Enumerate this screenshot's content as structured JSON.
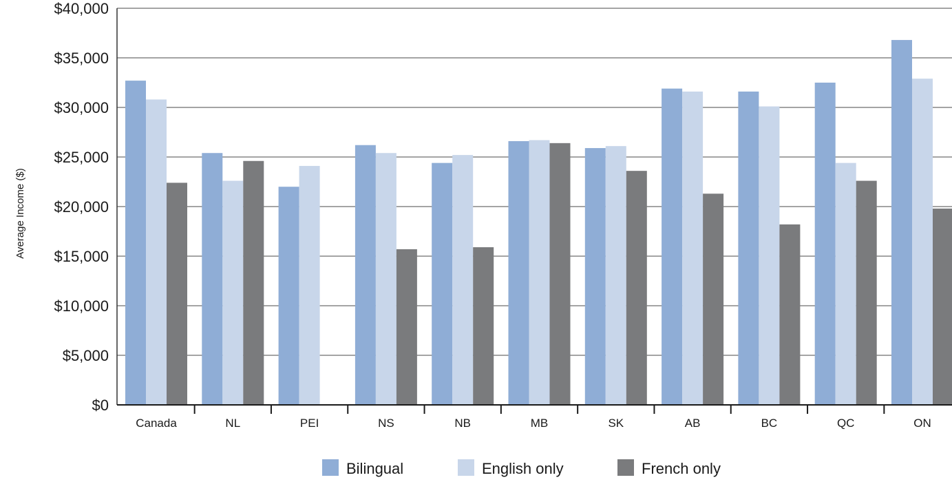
{
  "chart_data": {
    "type": "bar",
    "title": "",
    "xlabel": "",
    "ylabel": "Average Income ($)",
    "ylim": [
      0,
      40000
    ],
    "y_ticks": [
      0,
      5000,
      10000,
      15000,
      20000,
      25000,
      30000,
      35000,
      40000
    ],
    "y_tick_labels": [
      "$0",
      "$5,000",
      "$10,000",
      "$15,000",
      "$20,000",
      "$25,000",
      "$30,000",
      "$35,000",
      "$40,000"
    ],
    "grid": true,
    "legend_position": "bottom",
    "categories": [
      "Canada",
      "NL",
      "PEI",
      "NS",
      "NB",
      "MB",
      "SK",
      "AB",
      "BC",
      "QC",
      "ON"
    ],
    "series": [
      {
        "name": "Bilingual",
        "color": "#8fadd6",
        "values": [
          32700,
          25400,
          22000,
          26200,
          24400,
          26600,
          25900,
          31900,
          31600,
          32500,
          36800
        ]
      },
      {
        "name": "English only",
        "color": "#c8d6ea",
        "values": [
          30800,
          22600,
          24100,
          25400,
          25200,
          26700,
          26100,
          31600,
          30100,
          24400,
          32900
        ]
      },
      {
        "name": "French only",
        "color": "#7a7b7d",
        "values": [
          22400,
          24600,
          null,
          15700,
          15900,
          26400,
          23600,
          21300,
          18200,
          22600,
          19800
        ]
      }
    ]
  }
}
